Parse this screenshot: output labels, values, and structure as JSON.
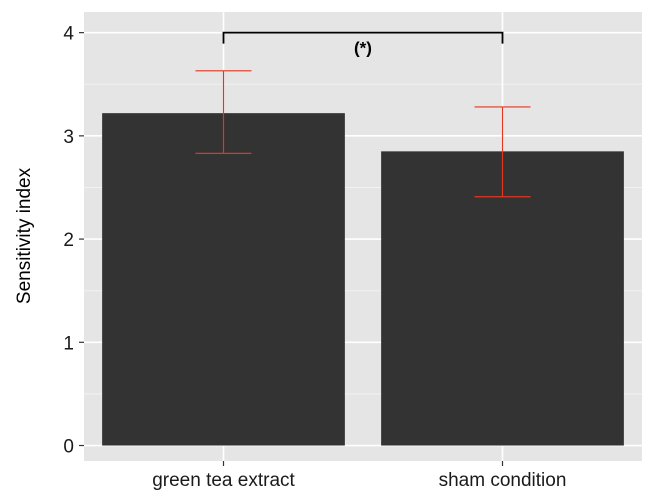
{
  "chart_data": {
    "type": "bar",
    "title": "",
    "xlabel": "",
    "ylabel": "Sensitivity index",
    "categories": [
      "green tea extract",
      "sham condition"
    ],
    "values": [
      3.22,
      2.85
    ],
    "error_low": [
      2.83,
      2.41
    ],
    "error_high": [
      3.63,
      3.28
    ],
    "ylim": [
      -0.15,
      4.2
    ],
    "yticks": [
      0,
      1,
      2,
      3,
      4
    ],
    "ytick_labels": [
      "0",
      "1",
      "2",
      "3",
      "4"
    ],
    "grid": true,
    "significance": {
      "between": [
        "green tea extract",
        "sham condition"
      ],
      "label": "(*)",
      "y": 4.0
    },
    "colors": {
      "bar": "#333333",
      "error_bar": "#e2361f",
      "panel_background": "#e5e5e5",
      "grid": "#ffffff"
    }
  }
}
